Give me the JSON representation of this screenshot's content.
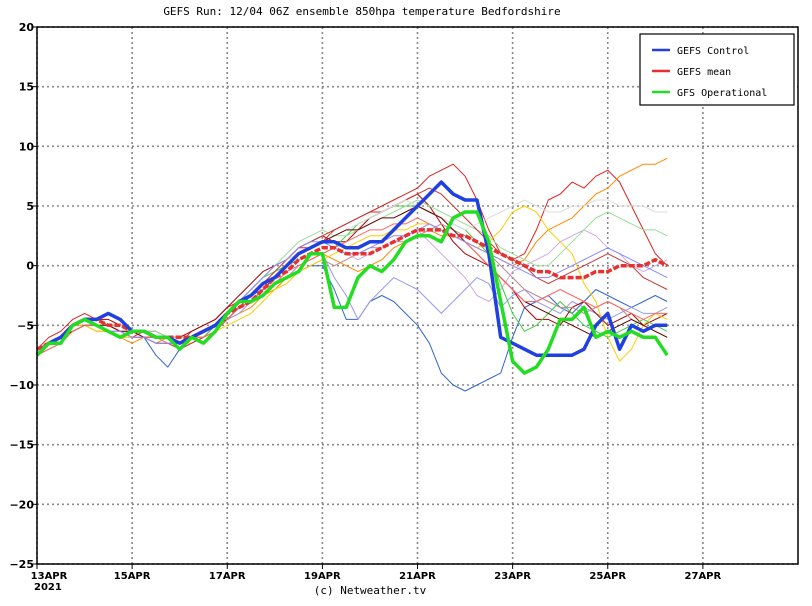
{
  "chart_data": {
    "type": "line",
    "title": "GEFS Run: 12/04 06Z ensemble 850hpa temperature Bedfordshire",
    "credit": "(c) Netweather.tv",
    "year_label": "2021",
    "ylim": [
      -25,
      20
    ],
    "ytick_values": [
      20,
      15,
      10,
      5,
      0,
      -5,
      -10,
      -15,
      -20,
      -25
    ],
    "ytick_labels": [
      "20",
      "15",
      "10",
      "5",
      "0",
      "−5",
      "−10",
      "−15",
      "−20",
      "−25"
    ],
    "xlim": [
      0,
      16
    ],
    "xtick_days": [
      0,
      2,
      4,
      6,
      8,
      10,
      12,
      14
    ],
    "xtick_labels": [
      "13APR",
      "15APR",
      "17APR",
      "19APR",
      "21APR",
      "23APR",
      "25APR",
      "27APR"
    ],
    "grid": true,
    "legend_position": "top-right",
    "colors": {
      "control": "#2040e0",
      "mean": "#e83030",
      "operational": "#22dd22",
      "grid": "#888888"
    },
    "x_day_step": 0.25,
    "series": [
      {
        "name": "GEFS Control",
        "key": "control",
        "width": 3.5,
        "values": [
          -7.5,
          -6.5,
          -6,
          -5,
          -4.5,
          -4.5,
          -4,
          -4.5,
          -5.5,
          -5.5,
          -6,
          -6,
          -6.5,
          -6,
          -5.5,
          -5,
          -4,
          -3,
          -2.5,
          -1.5,
          -1,
          0,
          1,
          1.5,
          2,
          2,
          1.5,
          1.5,
          2,
          2,
          3,
          4,
          5,
          6,
          7,
          6,
          5.5,
          5.5,
          1,
          -6,
          -6.5,
          -7,
          -7.5,
          -7.5,
          -7.5,
          -7.5,
          -7,
          -5,
          -4,
          -7,
          -5,
          -5.5,
          -5,
          -5
        ]
      },
      {
        "name": "GEFS mean",
        "key": "mean",
        "width": 3.5,
        "values": [
          -7,
          -6.5,
          -6,
          -5,
          -4.5,
          -4.5,
          -5,
          -5,
          -5.5,
          -5.5,
          -6,
          -6,
          -6,
          -6,
          -5.5,
          -5,
          -4,
          -3.5,
          -3,
          -2,
          -1,
          -0.5,
          0.5,
          1,
          1.5,
          1.5,
          1,
          1,
          1,
          1.5,
          2,
          2.5,
          3,
          3,
          3,
          2.5,
          2.5,
          2,
          1.5,
          1,
          0.5,
          0,
          -0.5,
          -0.5,
          -1,
          -1,
          -1,
          -0.5,
          -0.5,
          0,
          0,
          0,
          0.5,
          0
        ]
      },
      {
        "name": "GFS Operational",
        "key": "operational",
        "width": 3.5,
        "values": [
          -7.5,
          -6.5,
          -6.5,
          -5,
          -4.5,
          -5,
          -5.5,
          -6,
          -5.5,
          -5.5,
          -6,
          -6,
          -7,
          -6,
          -6.5,
          -5.5,
          -4,
          -3,
          -3,
          -2.5,
          -1.5,
          -1,
          -0.5,
          1,
          1,
          -3.5,
          -3.5,
          -1,
          0,
          -0.5,
          0.5,
          2,
          2.5,
          2.5,
          2,
          4,
          4.5,
          4.5,
          2,
          -3,
          -8,
          -9,
          -8.5,
          -7,
          -4.5,
          -4.5,
          -3.5,
          -6,
          -5.5,
          -6,
          -5.5,
          -6,
          -6,
          -7.5
        ]
      }
    ],
    "members": [
      {
        "color": "#e02020",
        "values": [
          -7,
          -6,
          -5.5,
          -4.5,
          -4,
          -4.5,
          -5,
          -5.5,
          -6,
          -5.5,
          -6,
          -6,
          -6.5,
          -5.5,
          -5,
          -4.5,
          -3.5,
          -3,
          -2,
          -1,
          0,
          0.5,
          1.5,
          1.5,
          2,
          3,
          3.5,
          4,
          4.5,
          5,
          5.5,
          6,
          6.5,
          7.5,
          8,
          8.5,
          7.5,
          5.5,
          3,
          1,
          0.5,
          1,
          3,
          5.5,
          6,
          7,
          6.5,
          7.5,
          8,
          7,
          5,
          3,
          1,
          0
        ]
      },
      {
        "color": "#ff8800",
        "values": [
          -7,
          -6.5,
          -6,
          -5,
          -5,
          -5.5,
          -5.5,
          -6,
          -6.5,
          -6,
          -6.5,
          -6,
          -6.5,
          -6,
          -6,
          -5,
          -4.5,
          -4,
          -3.5,
          -2.5,
          -2,
          -1,
          0,
          0.5,
          1,
          0.5,
          0,
          -0.5,
          0,
          0.5,
          1.5,
          2,
          2.5,
          3,
          2.5,
          2.5,
          2,
          1.5,
          1,
          0.5,
          0,
          0.5,
          2,
          3,
          3.5,
          4,
          5,
          6,
          6.5,
          7.5,
          8,
          8.5,
          8.5,
          9
        ]
      },
      {
        "color": "#3366cc",
        "values": [
          -7.5,
          -7,
          -6.5,
          -5.5,
          -5,
          -5,
          -5,
          -5.5,
          -6,
          -6,
          -7.5,
          -8.5,
          -7,
          -6.5,
          -6,
          -5,
          -4,
          -3.5,
          -2.5,
          -2,
          -1.5,
          -1,
          -0.5,
          0,
          0,
          -2,
          -4.5,
          -4.5,
          -3,
          -2.5,
          -3,
          -4,
          -5,
          -6.5,
          -9,
          -10,
          -10.5,
          -10,
          -9.5,
          -9,
          -6,
          -3.5,
          -3,
          -2.5,
          -3.5,
          -4,
          -3,
          -2,
          -2.5,
          -3,
          -3.5,
          -3,
          -2.5,
          -3
        ]
      },
      {
        "color": "#9999ee",
        "values": [
          -7,
          -6.5,
          -6,
          -5,
          -4.5,
          -5,
          -5.5,
          -6,
          -6,
          -6,
          -6,
          -6,
          -6.5,
          -6,
          -5.5,
          -5,
          -4.5,
          -4,
          -3,
          -2.5,
          -1.5,
          -1,
          0,
          0.5,
          1,
          -1,
          -2.5,
          -4.5,
          -3,
          -2,
          -1,
          -1.5,
          -2,
          -3,
          -4,
          -3,
          -2,
          -1,
          -1.5,
          -3.5,
          -2.5,
          -2,
          -3,
          -3.5,
          -4,
          -3,
          -3.5,
          -4,
          -4.5,
          -4,
          -3.5,
          -4,
          -4,
          -3.5
        ]
      },
      {
        "color": "#aa0000",
        "values": [
          -7,
          -6.5,
          -6,
          -5,
          -4.5,
          -4.5,
          -4.5,
          -5,
          -5.5,
          -5.5,
          -5.5,
          -6,
          -6,
          -5.5,
          -5,
          -4.5,
          -3.5,
          -2.5,
          -1.5,
          -0.5,
          0,
          0.5,
          1.5,
          2,
          2.5,
          2,
          2,
          3,
          4,
          4.5,
          5,
          5.5,
          6,
          5,
          3.5,
          2,
          1,
          0.5,
          0,
          -1,
          -2,
          -3.5,
          -4.5,
          -4.5,
          -5,
          -3.5,
          -3,
          -4,
          -5,
          -4.5,
          -4,
          -5,
          -4.5,
          -4
        ]
      },
      {
        "color": "#bb8888",
        "values": [
          -7,
          -6.5,
          -6,
          -5.5,
          -5,
          -5,
          -5,
          -5.5,
          -5.5,
          -6,
          -6,
          -6,
          -6.5,
          -6,
          -5.5,
          -5,
          -4.5,
          -3.5,
          -3,
          -2,
          -1.5,
          -1,
          -0.5,
          0,
          0.5,
          0,
          0.5,
          1,
          1.5,
          1.5,
          2,
          2,
          2.5,
          3,
          3.5,
          3,
          2.5,
          2,
          1,
          0,
          -1,
          -2,
          -2.5,
          -3,
          -3.5,
          -3.5,
          -4,
          -3.5,
          -3,
          -3.5,
          -4.5,
          -5,
          -5.5,
          -6
        ]
      },
      {
        "color": "#ffcc00",
        "values": [
          -7.5,
          -7,
          -6.5,
          -5.5,
          -5,
          -5.5,
          -5.5,
          -6,
          -6,
          -6,
          -6,
          -6,
          -6.5,
          -6.5,
          -6,
          -5.5,
          -5,
          -4.5,
          -4,
          -3,
          -2,
          -1.5,
          -0.5,
          0,
          0.5,
          1,
          1.5,
          2,
          2.5,
          2.5,
          3,
          3,
          3.5,
          3.5,
          3,
          2.5,
          2,
          1.5,
          2,
          3,
          4.5,
          5,
          4.5,
          3,
          2,
          1,
          -1.5,
          -3,
          -6,
          -8,
          -7,
          -5,
          -4,
          -4.5
        ]
      },
      {
        "color": "#ccaadd",
        "values": [
          -7,
          -6.5,
          -6,
          -5,
          -4.5,
          -4.5,
          -5,
          -5,
          -5.5,
          -5.5,
          -5.5,
          -6,
          -6,
          -6,
          -5.5,
          -5,
          -4,
          -3,
          -2.5,
          -1.5,
          -1,
          0,
          1,
          1.5,
          2,
          1.5,
          1,
          0.5,
          1,
          1.5,
          2,
          2.5,
          3,
          2,
          1,
          0,
          -1,
          -2.5,
          -3,
          -2,
          -0.5,
          0,
          0.5,
          1,
          2,
          2.5,
          3,
          2.5,
          1.5,
          1,
          0,
          -0.5,
          0,
          0.5
        ]
      },
      {
        "color": "#44cc44",
        "values": [
          -7.5,
          -7,
          -6.5,
          -5.5,
          -5,
          -5,
          -5,
          -5.5,
          -6,
          -6,
          -6.5,
          -6.5,
          -6.5,
          -6,
          -6,
          -5,
          -4,
          -3,
          -2,
          -1,
          -0.5,
          0,
          0.5,
          1,
          1,
          1.5,
          2.5,
          3.5,
          4,
          4.5,
          5,
          5,
          5,
          4.5,
          4,
          3.5,
          3,
          2,
          1,
          -1.5,
          -4,
          -5.5,
          -5,
          -4,
          -3,
          -4,
          -5,
          -5.5,
          -6,
          -5.5,
          -5,
          -4.5,
          -5,
          -5.5
        ]
      },
      {
        "color": "#99dd99",
        "values": [
          -7,
          -6.5,
          -6,
          -5,
          -4.5,
          -4.5,
          -5,
          -5,
          -5.5,
          -5.5,
          -5.5,
          -6,
          -6,
          -6,
          -5.5,
          -5,
          -4,
          -3,
          -2,
          -1,
          0,
          1,
          2,
          2.5,
          3,
          2.5,
          2.5,
          3,
          3.5,
          4,
          4.5,
          5,
          5.5,
          5,
          4.5,
          4,
          3.5,
          3,
          2.5,
          1.5,
          1,
          0.5,
          0,
          0,
          1,
          2,
          3,
          4,
          4.5,
          4,
          3.5,
          3,
          3,
          2.5
        ]
      },
      {
        "color": "#cc3333",
        "values": [
          -7,
          -6.5,
          -6,
          -5,
          -4.5,
          -4.5,
          -5,
          -5.5,
          -6,
          -6,
          -6.5,
          -6.5,
          -7,
          -6.5,
          -6,
          -5.5,
          -4.5,
          -3.5,
          -2.5,
          -1.5,
          -0.5,
          0.5,
          1.5,
          2,
          2.5,
          3,
          3.5,
          4,
          4.5,
          4.5,
          5,
          5.5,
          6,
          6.5,
          6,
          5,
          4,
          3,
          2,
          1,
          0.5,
          0,
          -1,
          -1.5,
          -1,
          -0.5,
          0,
          0.5,
          1,
          0.5,
          0,
          -1,
          -1.5,
          -2
        ]
      },
      {
        "color": "#dddddd",
        "values": [
          -7.5,
          -7,
          -6.5,
          -5.5,
          -5,
          -5,
          -5,
          -5.5,
          -6,
          -6,
          -6,
          -6,
          -6.5,
          -6,
          -5.5,
          -5,
          -4,
          -3,
          -2,
          -1,
          0,
          0.5,
          1,
          1.5,
          2,
          2.5,
          3,
          3.5,
          4,
          4.5,
          5,
          5.5,
          5,
          4.5,
          4,
          3.5,
          3,
          3.5,
          4,
          4.5,
          5,
          5.5,
          5,
          4.5,
          4.5,
          5,
          5,
          5.5,
          5.5,
          5,
          5,
          5,
          4.5,
          4.5
        ]
      },
      {
        "color": "#660000",
        "values": [
          -7,
          -6.5,
          -6,
          -5.5,
          -5,
          -5,
          -5,
          -5.5,
          -5.5,
          -6,
          -6,
          -6,
          -6.5,
          -6,
          -5.5,
          -5,
          -4.5,
          -3.5,
          -3,
          -2,
          -1,
          0,
          1,
          1.5,
          2,
          2.5,
          3,
          3,
          3.5,
          4,
          4,
          4.5,
          5,
          4.5,
          4,
          3,
          2,
          1,
          0,
          -1,
          -2,
          -3,
          -3.5,
          -4,
          -4.5,
          -5,
          -5.5,
          -6,
          -5.5,
          -5,
          -4.5,
          -5,
          -5.5,
          -6
        ]
      },
      {
        "color": "#ff6666",
        "values": [
          -7.5,
          -7,
          -6.5,
          -5.5,
          -5,
          -5,
          -5.5,
          -5.5,
          -6,
          -6,
          -6,
          -6.5,
          -6.5,
          -6,
          -6,
          -5.5,
          -4.5,
          -3.5,
          -3,
          -2,
          -1.5,
          -0.5,
          0,
          0.5,
          1,
          1.5,
          2,
          2.5,
          3,
          3,
          3.5,
          3.5,
          4,
          3.5,
          3,
          2.5,
          2,
          1,
          0,
          -1,
          -2,
          -3,
          -3,
          -2.5,
          -2,
          -2.5,
          -3,
          -3.5,
          -3,
          -3.5,
          -4,
          -4.5,
          -4,
          -4
        ]
      },
      {
        "color": "#8888ff",
        "values": [
          -7,
          -6.5,
          -6,
          -5,
          -4.5,
          -5,
          -5.5,
          -5.5,
          -6,
          -6,
          -6.5,
          -6.5,
          -6.5,
          -6,
          -5.5,
          -5,
          -4,
          -3,
          -2,
          -1,
          0,
          0.5,
          1.5,
          2,
          2,
          1.5,
          1,
          1,
          1.5,
          2,
          2.5,
          2.5,
          3,
          3.5,
          3,
          2.5,
          2,
          1.5,
          1,
          0.5,
          0,
          -0.5,
          -1,
          -1,
          -0.5,
          0,
          0.5,
          1,
          1.5,
          1,
          0.5,
          0,
          -0.5,
          -1
        ]
      }
    ]
  }
}
